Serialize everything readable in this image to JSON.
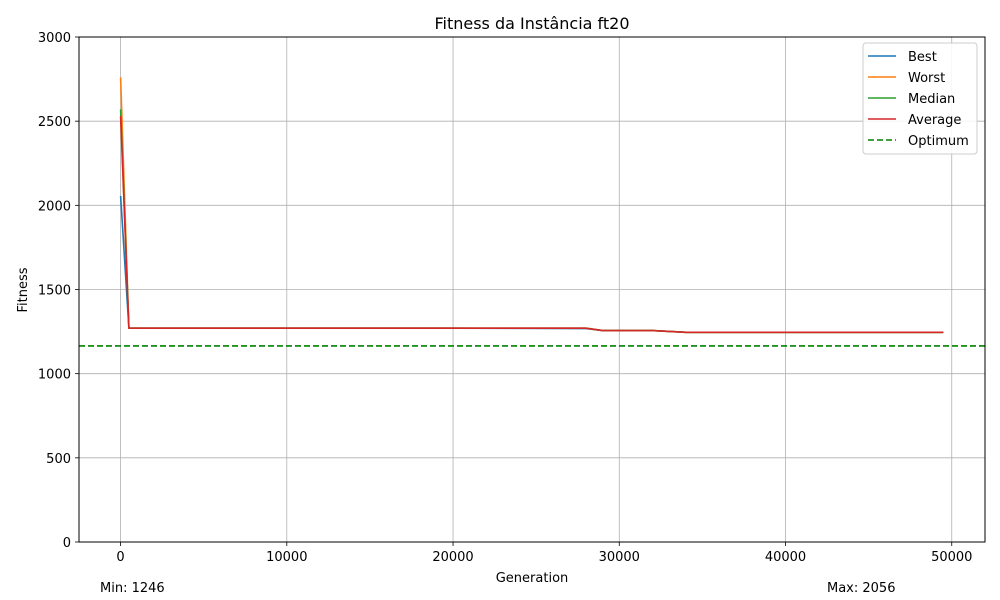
{
  "chart_data": {
    "type": "line",
    "title": "Fitness da Instância ft20",
    "xlabel": "Generation",
    "ylabel": "Fitness",
    "xlim": [
      -2500,
      52000
    ],
    "ylim": [
      0,
      3000
    ],
    "xticks": [
      0,
      10000,
      20000,
      30000,
      40000,
      50000
    ],
    "yticks": [
      0,
      500,
      1000,
      1500,
      2000,
      2500,
      3000
    ],
    "grid": true,
    "legend_position": "top-right",
    "series": [
      {
        "name": "Best",
        "color": "#1f77b4",
        "style": "solid",
        "x": [
          0,
          500,
          2000,
          10000,
          20000,
          28000,
          29000,
          32000,
          34000,
          49500
        ],
        "y": [
          2056,
          1270,
          1270,
          1270,
          1270,
          1268,
          1256,
          1256,
          1246,
          1246
        ]
      },
      {
        "name": "Worst",
        "color": "#ff7f0e",
        "style": "solid",
        "x": [
          0,
          500,
          2000,
          10000,
          20000,
          28000,
          29000,
          32000,
          34000,
          49500
        ],
        "y": [
          2760,
          1270,
          1270,
          1270,
          1270,
          1270,
          1256,
          1256,
          1246,
          1246
        ]
      },
      {
        "name": "Median",
        "color": "#2ca02c",
        "style": "solid",
        "x": [
          0,
          500,
          2000,
          10000,
          20000,
          28000,
          29000,
          32000,
          34000,
          49500
        ],
        "y": [
          2570,
          1270,
          1270,
          1270,
          1270,
          1270,
          1256,
          1256,
          1246,
          1246
        ]
      },
      {
        "name": "Average",
        "color": "#d62728",
        "style": "solid",
        "x": [
          0,
          500,
          2000,
          10000,
          20000,
          28000,
          29000,
          32000,
          34000,
          49500
        ],
        "y": [
          2530,
          1270,
          1270,
          1270,
          1270,
          1270,
          1256,
          1256,
          1246,
          1246
        ]
      },
      {
        "name": "Optimum",
        "color": "#008000",
        "style": "dashed",
        "hline": 1165
      }
    ]
  },
  "footer": {
    "min_label": "Min: 1246",
    "max_label": "Max: 2056"
  }
}
